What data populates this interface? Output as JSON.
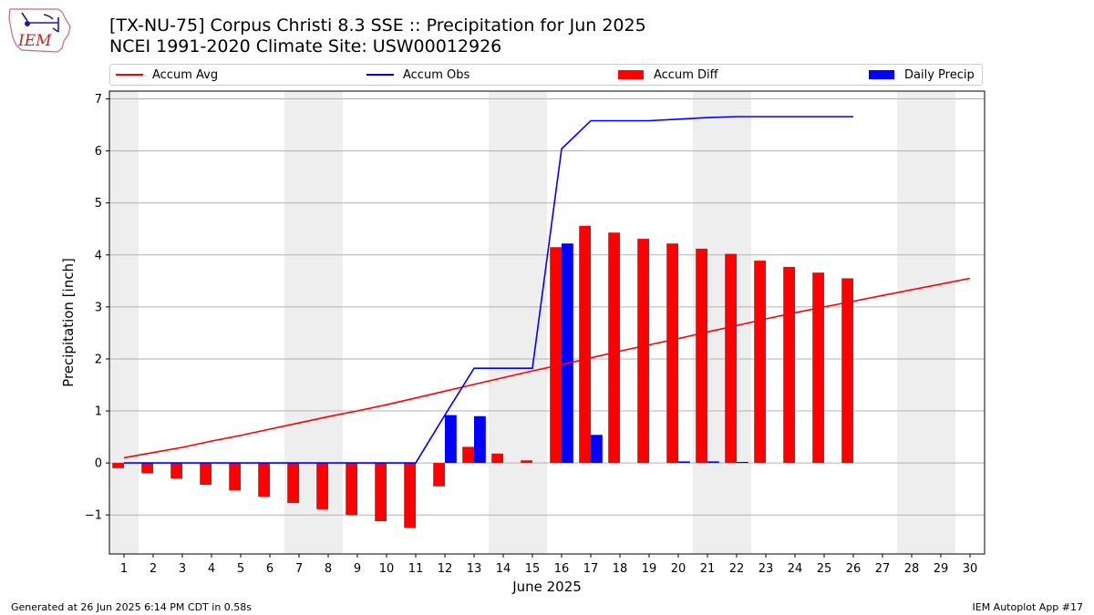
{
  "header": {
    "title_line1": "[TX-NU-75] Corpus Christi 8.3 SSE :: Precipitation for Jun 2025",
    "title_line2": "NCEI 1991-2020 Climate Site: USW00012926",
    "logo_text": "IEM"
  },
  "footer": {
    "generated": "Generated at 26 Jun 2025 6:14 PM CDT in 0.58s",
    "app": "IEM Autoplot App #17"
  },
  "legend": [
    {
      "label": "Accum Avg",
      "kind": "line",
      "color": "#ff0000"
    },
    {
      "label": "Accum Obs",
      "kind": "line",
      "color": "#0000ff"
    },
    {
      "label": "Accum Diff",
      "kind": "bar",
      "color": "#ff0000"
    },
    {
      "label": "Daily Precip",
      "kind": "bar",
      "color": "#0000ff"
    }
  ],
  "chart_data": {
    "type": "bar",
    "xlabel": "June 2025",
    "ylabel": "Precipitation [inch]",
    "x": [
      1,
      2,
      3,
      4,
      5,
      6,
      7,
      8,
      9,
      10,
      11,
      12,
      13,
      14,
      15,
      16,
      17,
      18,
      19,
      20,
      21,
      22,
      23,
      24,
      25,
      26,
      27,
      28,
      29,
      30
    ],
    "xlim": [
      0.5,
      30.5
    ],
    "ylim": [
      -1.75,
      7.15
    ],
    "yticks": [
      -1,
      0,
      1,
      2,
      3,
      4,
      5,
      6,
      7
    ],
    "grid": "horizontal",
    "weekend_shading": [
      [
        0.5,
        1.5
      ],
      [
        6.5,
        8.5
      ],
      [
        13.5,
        15.5
      ],
      [
        20.5,
        22.5
      ],
      [
        27.5,
        29.5
      ]
    ],
    "legend_position": "top",
    "series": [
      {
        "name": "Accum Avg",
        "kind": "line",
        "color": "#ff0000",
        "x": [
          1,
          2,
          3,
          4,
          5,
          6,
          7,
          8,
          9,
          10,
          11,
          12,
          13,
          14,
          15,
          16,
          17,
          18,
          19,
          20,
          21,
          22,
          23,
          24,
          25,
          26,
          27,
          28,
          29,
          30
        ],
        "values": [
          0.1,
          0.2,
          0.3,
          0.42,
          0.53,
          0.65,
          0.77,
          0.89,
          1.0,
          1.12,
          1.25,
          1.38,
          1.51,
          1.64,
          1.77,
          1.89,
          2.02,
          2.15,
          2.27,
          2.39,
          2.52,
          2.64,
          2.77,
          2.89,
          3.0,
          3.11,
          3.22,
          3.33,
          3.44,
          3.55
        ]
      },
      {
        "name": "Accum Obs",
        "kind": "line",
        "color": "#0000ff",
        "x": [
          1,
          2,
          3,
          4,
          5,
          6,
          7,
          8,
          9,
          10,
          11,
          12,
          13,
          14,
          15,
          16,
          17,
          18,
          19,
          20,
          21,
          22,
          23,
          24,
          25,
          26
        ],
        "values": [
          0,
          0,
          0,
          0,
          0,
          0,
          0,
          0,
          0,
          0,
          0,
          0.92,
          1.82,
          1.82,
          1.82,
          6.04,
          6.58,
          6.58,
          6.58,
          6.61,
          6.64,
          6.66,
          6.66,
          6.66,
          6.66,
          6.66
        ]
      },
      {
        "name": "Accum Diff",
        "kind": "bar",
        "color": "#ff0000",
        "x": [
          1,
          2,
          3,
          4,
          5,
          6,
          7,
          8,
          9,
          10,
          11,
          12,
          13,
          14,
          15,
          16,
          17,
          18,
          19,
          20,
          21,
          22,
          23,
          24,
          25,
          26
        ],
        "values": [
          -0.1,
          -0.2,
          -0.3,
          -0.42,
          -0.53,
          -0.65,
          -0.77,
          -0.89,
          -1.0,
          -1.12,
          -1.25,
          -0.45,
          0.31,
          0.18,
          0.05,
          4.15,
          4.56,
          4.43,
          4.31,
          4.22,
          4.12,
          4.02,
          3.89,
          3.77,
          3.66,
          3.55
        ]
      },
      {
        "name": "Daily Precip",
        "kind": "bar",
        "color": "#0000ff",
        "x": [
          1,
          2,
          3,
          4,
          5,
          6,
          7,
          8,
          9,
          10,
          11,
          12,
          13,
          14,
          15,
          16,
          17,
          18,
          19,
          20,
          21,
          22,
          23,
          24,
          25,
          26
        ],
        "values": [
          0,
          0,
          0,
          0,
          0,
          0,
          0,
          0,
          0,
          0,
          0,
          0.92,
          0.9,
          0,
          0,
          4.22,
          0.54,
          0,
          0,
          0.03,
          0.03,
          0.02,
          0,
          0,
          0,
          0
        ]
      }
    ]
  }
}
